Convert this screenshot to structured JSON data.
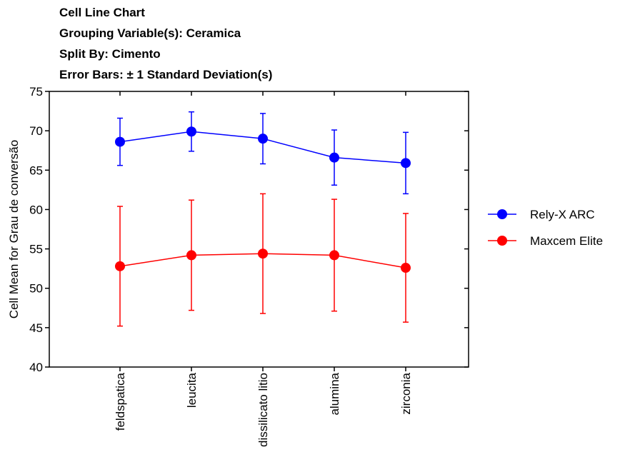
{
  "chart_data": {
    "type": "line",
    "title_lines": [
      "Cell Line Chart",
      "Grouping Variable(s): Ceramica",
      "Split By: Cimento",
      "Error Bars: ± 1 Standard Deviation(s)"
    ],
    "xlabel": "",
    "ylabel": "Cell Mean for Grau de conversão",
    "ylim": [
      40,
      75
    ],
    "yticks": [
      40,
      45,
      50,
      55,
      60,
      65,
      70,
      75
    ],
    "categories": [
      "feldspatica",
      "leucita",
      "dissilicato litio",
      "alumina",
      "zirconia"
    ],
    "series": [
      {
        "name": "Rely-X ARC",
        "color": "#0000ff",
        "values": [
          68.6,
          69.9,
          69.0,
          66.6,
          65.9
        ],
        "error": [
          3.0,
          2.5,
          3.2,
          3.5,
          3.9
        ]
      },
      {
        "name": "Maxcem Elite",
        "color": "#ff0000",
        "values": [
          52.8,
          54.2,
          54.4,
          54.2,
          52.6
        ],
        "error": [
          7.6,
          7.0,
          7.6,
          7.1,
          6.9
        ]
      }
    ],
    "grid": false,
    "legend_position": "right"
  }
}
